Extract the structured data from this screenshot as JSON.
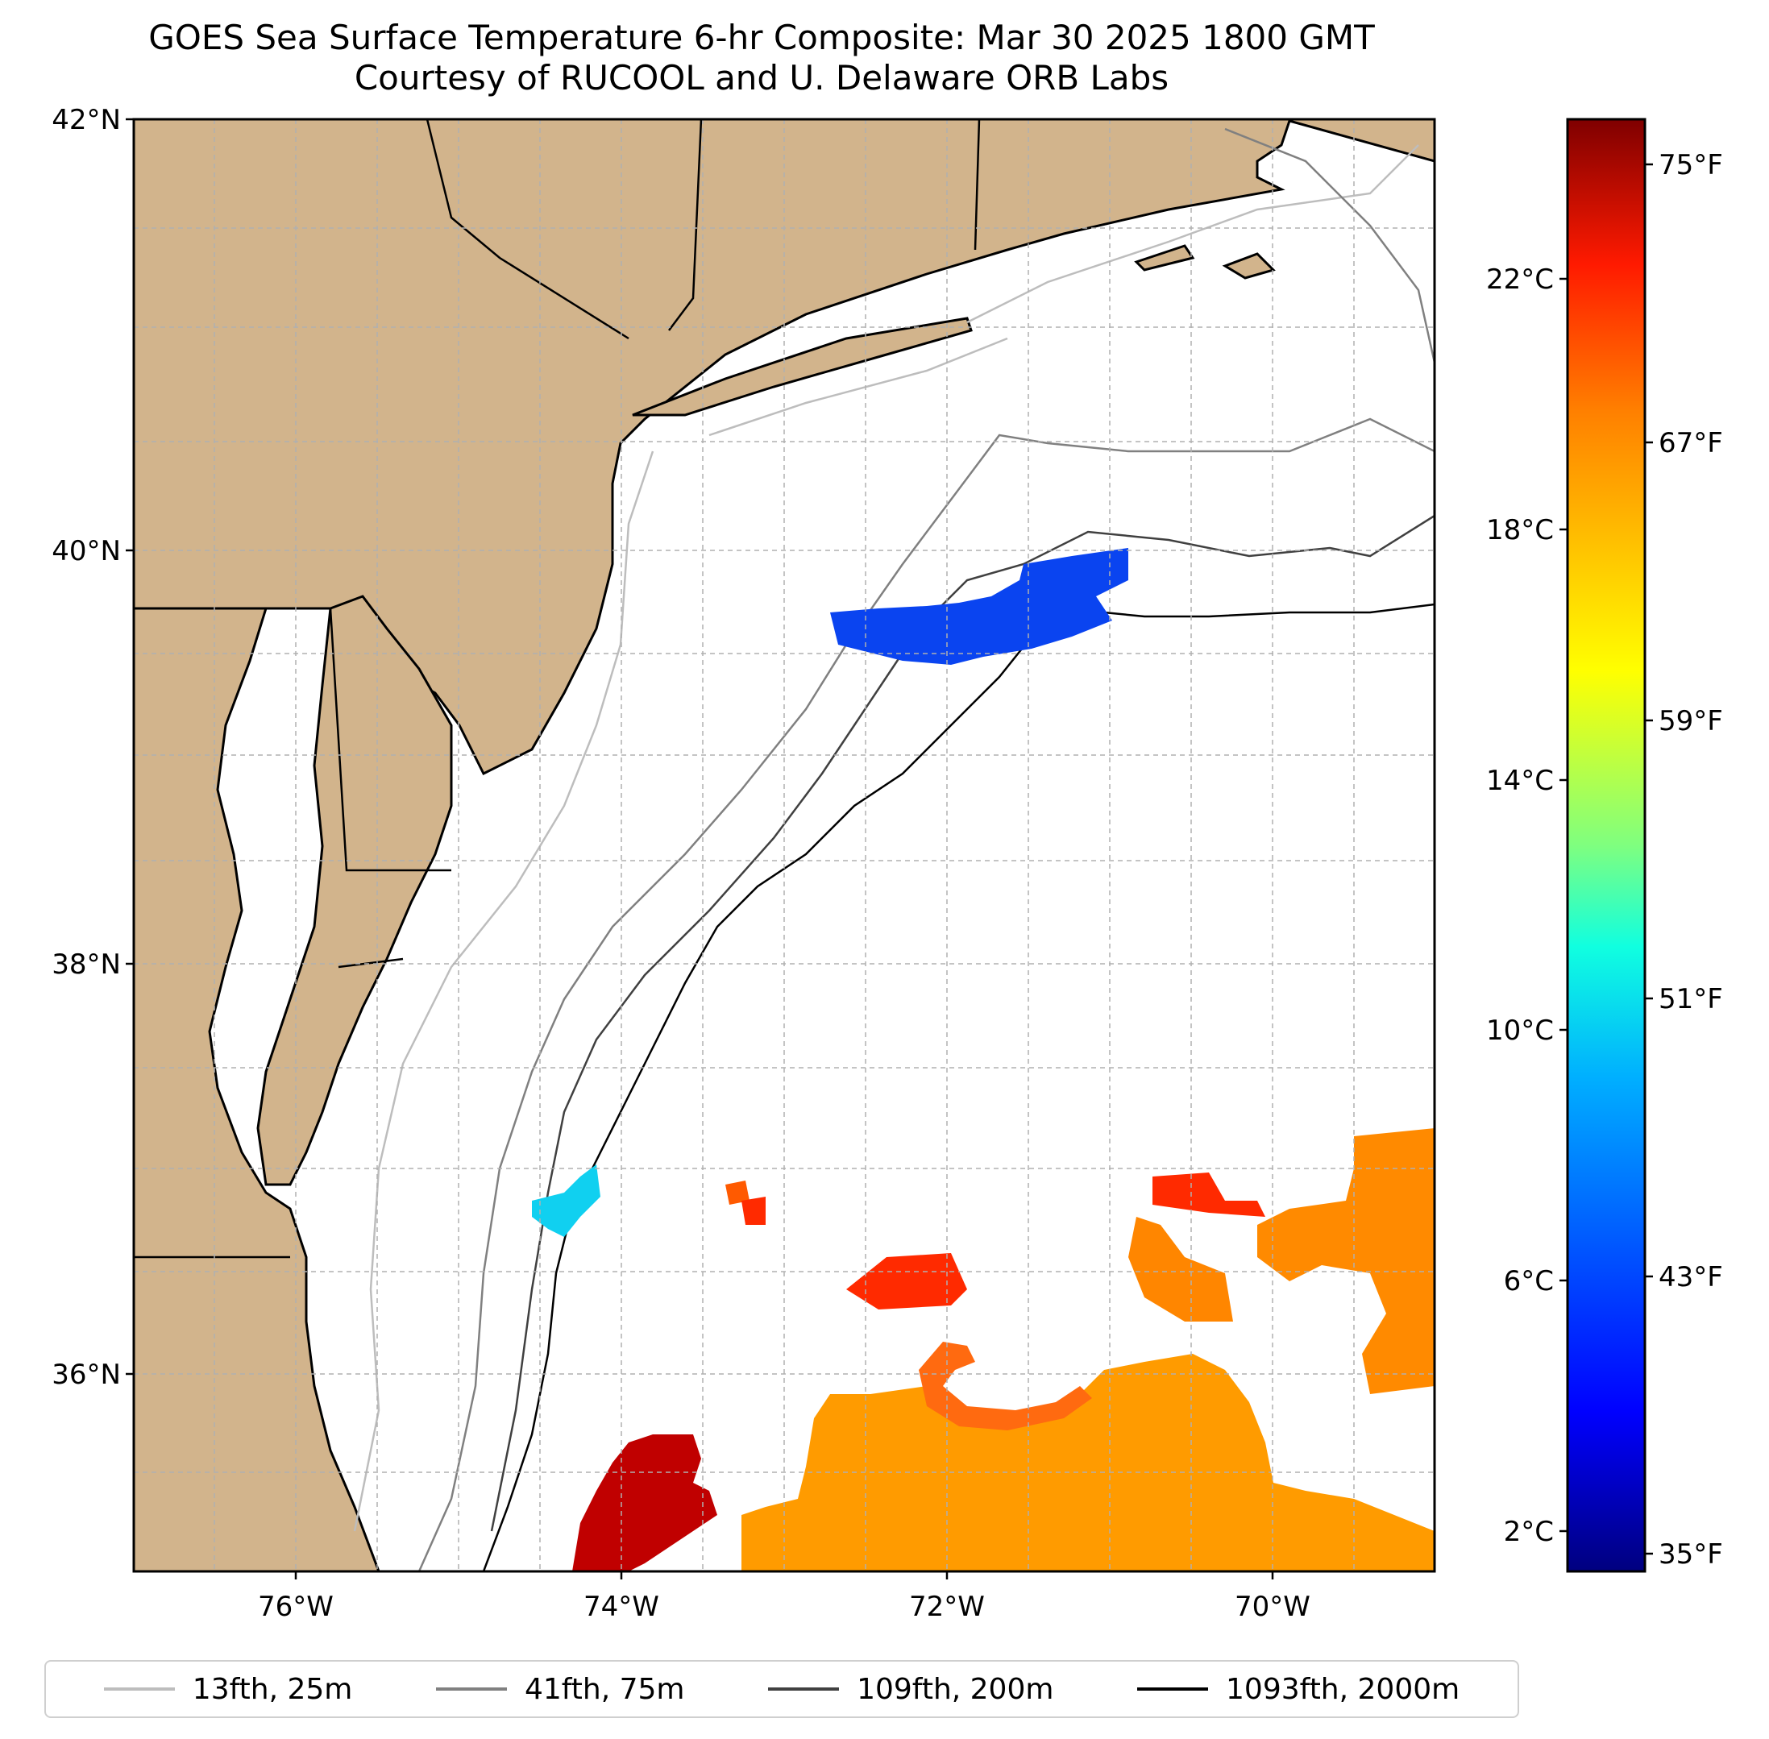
{
  "title": {
    "line1": "GOES Sea Surface Temperature 6-hr Composite: Mar 30 2025 1800 GMT",
    "line2": "Courtesy of RUCOOL and U. Delaware ORB Labs"
  },
  "axes": {
    "lat_labels": [
      "42°N",
      "40°N",
      "38°N",
      "36°N"
    ],
    "lon_labels": [
      "76°W",
      "74°W",
      "72°W",
      "70°W"
    ],
    "lon_range": [
      -77.0,
      -69.0
    ],
    "lat_range": [
      35.0,
      42.0
    ]
  },
  "colorbar": {
    "celsius_labels": [
      "22°C",
      "18°C",
      "14°C",
      "10°C",
      "6°C",
      "2°C"
    ],
    "fahrenheit_labels": [
      "75°F",
      "67°F",
      "59°F",
      "51°F",
      "43°F",
      "35°F"
    ],
    "colormap": "jet",
    "colors": [
      "#00007f",
      "#0000ff",
      "#007fff",
      "#00ffff",
      "#7fff7f",
      "#ffff00",
      "#ff7f00",
      "#ff0000",
      "#7f0000"
    ]
  },
  "legend": [
    {
      "label": "13fth, 25m",
      "color": "#bdbdbd"
    },
    {
      "label": "41fth, 75m",
      "color": "#808080"
    },
    {
      "label": "109fth, 200m",
      "color": "#404040"
    },
    {
      "label": "1093fth, 2000m",
      "color": "#000000"
    }
  ],
  "colors": {
    "land": "#d2b48c",
    "ocean": "#ffffff",
    "grid": "#b0b0b0",
    "sst_cold_patch": "#0a44f0",
    "sst_cyan_patch": "#10d0f0",
    "sst_warm_orange": "#ff9b00",
    "sst_red": "#ff2a00",
    "sst_dark_red": "#c00000"
  }
}
